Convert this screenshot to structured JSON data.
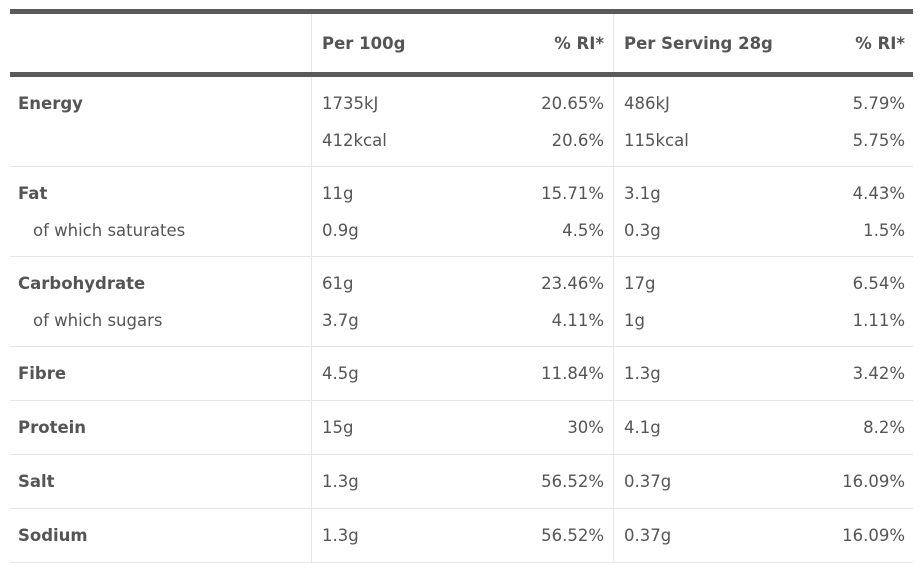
{
  "header": {
    "col1": "Per 100g",
    "col2": "% RI*",
    "col3": "Per Serving 28g",
    "col4": "% RI*"
  },
  "rows": [
    {
      "lines": [
        {
          "label": "Energy",
          "v1": "1735kJ",
          "v2": "20.65%",
          "v3": "486kJ",
          "v4": "5.79%"
        },
        {
          "label": "",
          "v1": "412kcal",
          "v2": "20.6%",
          "v3": "115kcal",
          "v4": "5.75%"
        }
      ]
    },
    {
      "lines": [
        {
          "label": "Fat",
          "v1": "11g",
          "v2": "15.71%",
          "v3": "3.1g",
          "v4": "4.43%"
        },
        {
          "label": "of which saturates",
          "v1": "0.9g",
          "v2": "4.5%",
          "v3": "0.3g",
          "v4": "1.5%"
        }
      ]
    },
    {
      "lines": [
        {
          "label": "Carbohydrate",
          "v1": "61g",
          "v2": "23.46%",
          "v3": "17g",
          "v4": "6.54%"
        },
        {
          "label": "of which sugars",
          "v1": "3.7g",
          "v2": "4.11%",
          "v3": "1g",
          "v4": "1.11%"
        }
      ]
    },
    {
      "lines": [
        {
          "label": "Fibre",
          "v1": "4.5g",
          "v2": "11.84%",
          "v3": "1.3g",
          "v4": "3.42%"
        }
      ]
    },
    {
      "lines": [
        {
          "label": "Protein",
          "v1": "15g",
          "v2": "30%",
          "v3": "4.1g",
          "v4": "8.2%"
        }
      ]
    },
    {
      "lines": [
        {
          "label": "Salt",
          "v1": "1.3g",
          "v2": "56.52%",
          "v3": "0.37g",
          "v4": "16.09%"
        }
      ]
    },
    {
      "lines": [
        {
          "label": "Sodium",
          "v1": "1.3g",
          "v2": "56.52%",
          "v3": "0.37g",
          "v4": "16.09%"
        }
      ]
    }
  ]
}
